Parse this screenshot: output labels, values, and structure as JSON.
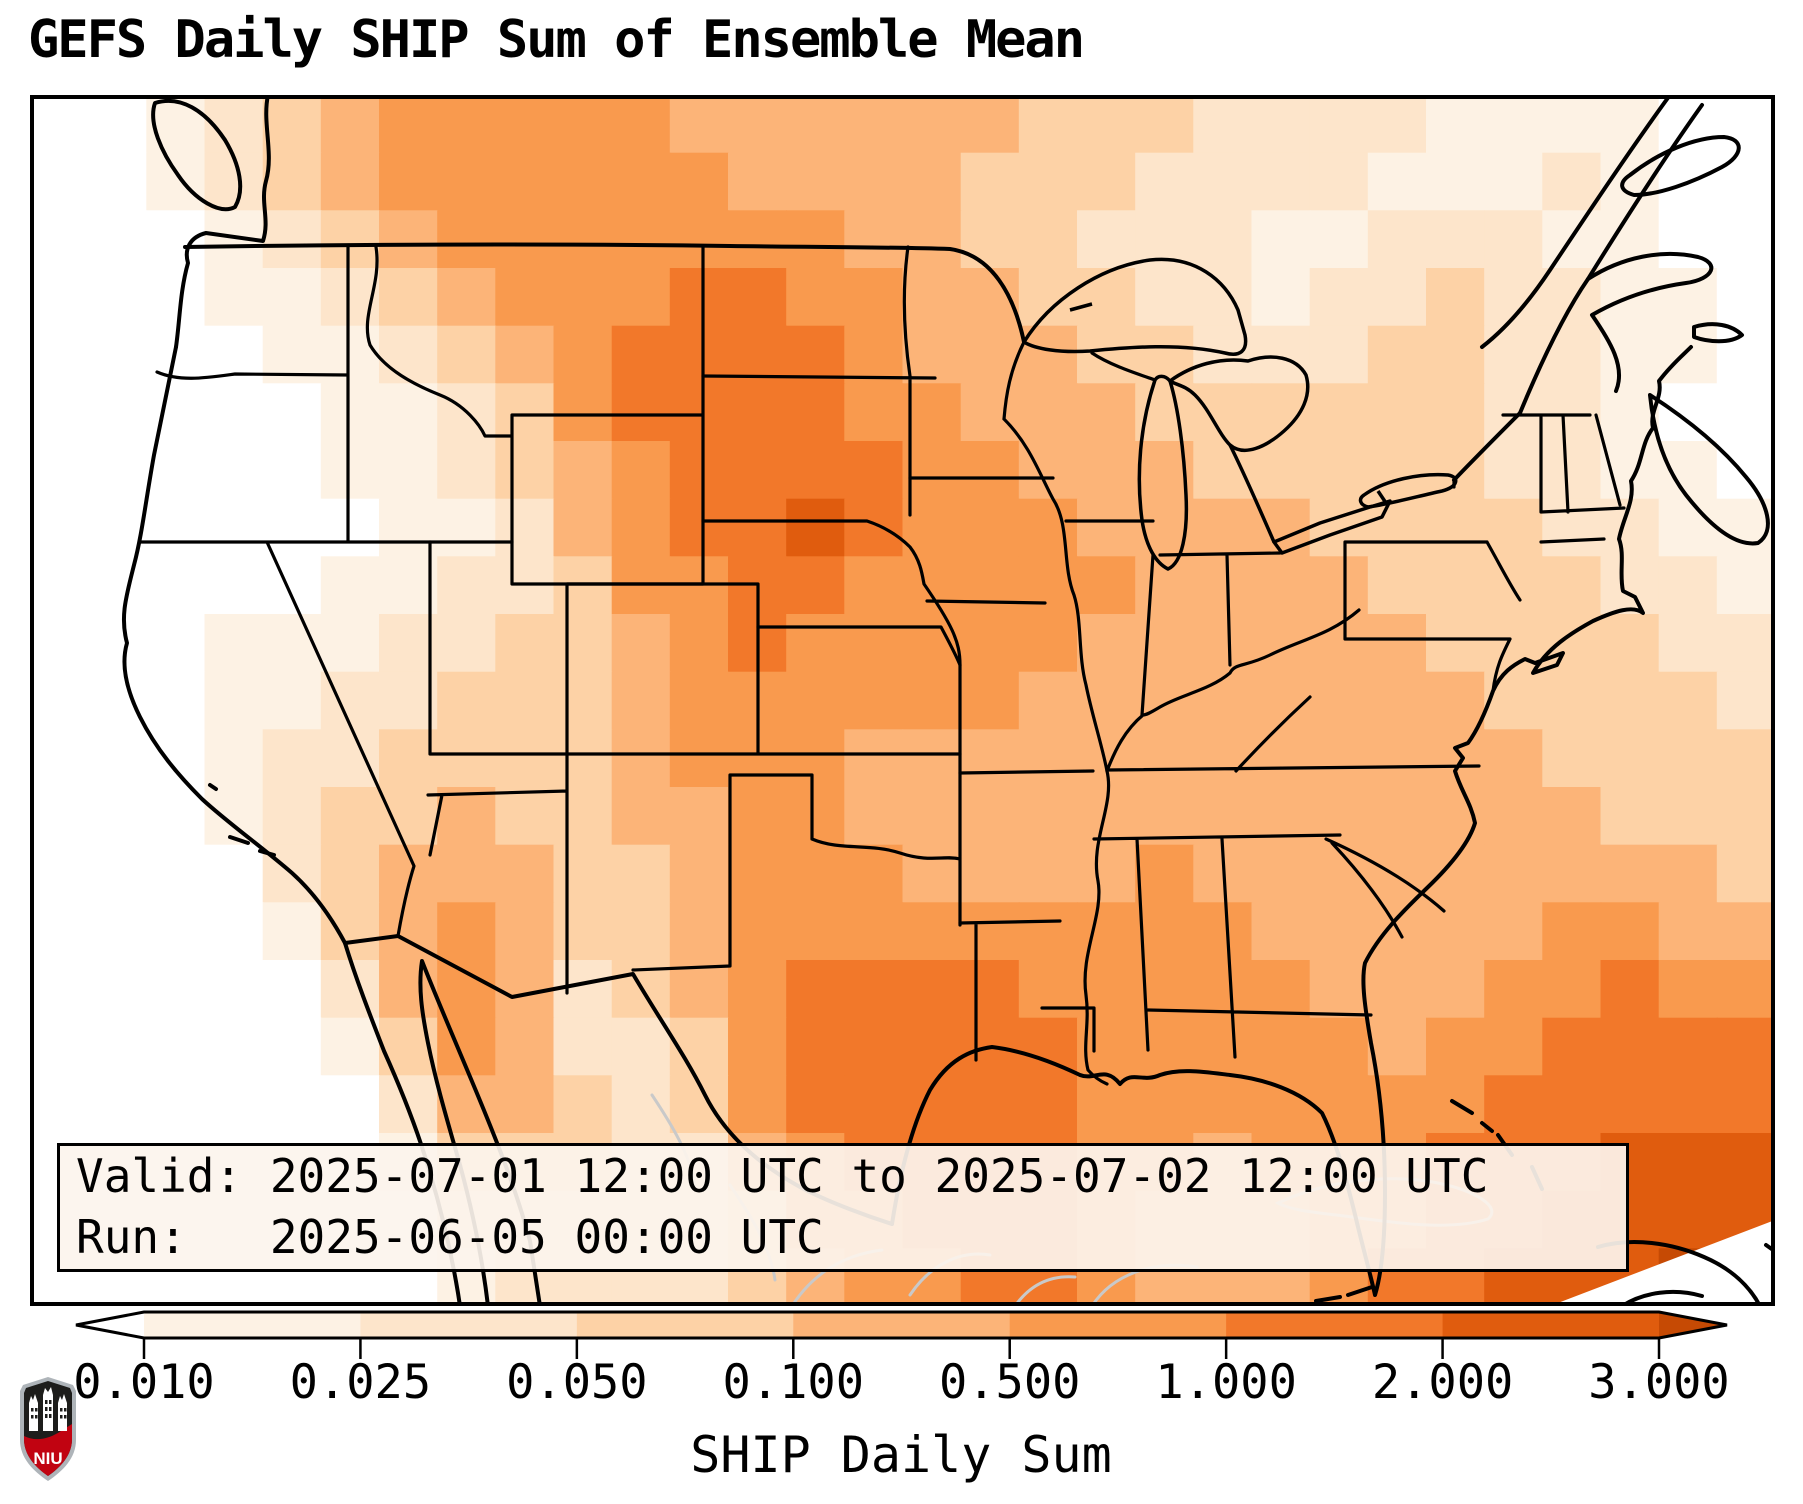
{
  "header": {
    "title": "GEFS Daily SHIP Sum of Ensemble Mean"
  },
  "info_box": {
    "valid_line": "Valid: 2025-07-01 12:00 UTC to 2025-07-02 12:00 UTC",
    "run_line": "Run:   2025-06-05 00:00 UTC"
  },
  "logo": {
    "text": "NIU",
    "shield_black": "#1d1d1b",
    "shield_red": "#c10311",
    "shield_silver": "#aeb4b9"
  },
  "chart_data": {
    "type": "heatmap",
    "title": "GEFS Daily SHIP Sum of Ensemble Mean",
    "region": "Continental United States",
    "colorbar_label": "SHIP Daily Sum",
    "tick_labels": [
      "0.010",
      "0.025",
      "0.050",
      "0.100",
      "0.500",
      "1.000",
      "2.000",
      "3.000"
    ],
    "bin_edges": [
      0.01,
      0.025,
      0.05,
      0.1,
      0.5,
      1.0,
      2.0,
      3.0
    ],
    "legend_position": "bottom",
    "under_color": "#ffffff",
    "over_color": "#c64a04",
    "segment_colors": [
      "#fdf2e4",
      "#fde5cb",
      "#fdd2a6",
      "#fcb478",
      "#f99a4e",
      "#f2782a",
      "#e05c0e"
    ],
    "grid_palette": [
      "#ffffff",
      "#fdf2e4",
      "#fde5cb",
      "#fdd2a6",
      "#fcb478",
      "#f99a4e",
      "#f2782a",
      "#e05c0e",
      "#c64a04"
    ],
    "grid_cols": 30,
    "grid_rows": 21,
    "grid": [
      "001234555554444443332222111100",
      "001234555555444433322221112100",
      "000123455555554433222112221100",
      "000112345556655443322122322110",
      "000011234566665444332223322110",
      "000001123566665544433333322100",
      "000001123456666554443333322110",
      "000000112456676555444433332211",
      "000001122355665555544443333221",
      "000111223345655555444444333322",
      "000112233345555554444444433332",
      "000122333345554444444444443333",
      "000123343344554444444444444333",
      "000023444334555444454444444443",
      "000013454334555555555444445544",
      "000002454234566665555544455655",
      "000001354223566666555554556666",
      "000000244323566666555555566666",
      "000000133322456666554555666777",
      "000000022222355666544455667777",
      "000000012222345566544456677788"
    ]
  }
}
